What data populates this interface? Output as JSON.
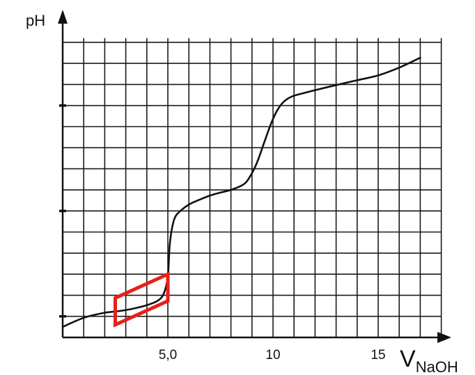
{
  "chart_data": {
    "type": "line",
    "xlabel": "V",
    "xlabel_sub": "NaOH",
    "ylabel": "pH",
    "xlim": [
      0,
      18
    ],
    "ylim": [
      0,
      14
    ],
    "x_tick_labels": [
      {
        "x": 5,
        "label": "5,0"
      },
      {
        "x": 10,
        "label": "10"
      },
      {
        "x": 15,
        "label": "15"
      }
    ],
    "y_major_ticks": [
      1,
      6,
      11
    ],
    "grid": true,
    "series": [
      {
        "name": "",
        "color": "#111111",
        "x": [
          0,
          0.5,
          1,
          1.5,
          2,
          2.5,
          3,
          3.5,
          4,
          4.5,
          4.8,
          5.0,
          5.1,
          5.3,
          5.6,
          6,
          6.5,
          7,
          7.5,
          8,
          8.5,
          8.8,
          9.2,
          9.6,
          9.9,
          10.2,
          10.5,
          10.9,
          11.5,
          12,
          13,
          14,
          15,
          16,
          17
        ],
        "y": [
          0.5,
          0.73,
          0.93,
          1.07,
          1.17,
          1.23,
          1.3,
          1.4,
          1.53,
          1.73,
          2.07,
          2.9,
          4.5,
          5.6,
          6.0,
          6.3,
          6.53,
          6.73,
          6.87,
          7.0,
          7.2,
          7.47,
          8.2,
          9.3,
          10.13,
          10.77,
          11.17,
          11.43,
          11.6,
          11.73,
          11.97,
          12.2,
          12.43,
          12.8,
          13.27
        ]
      }
    ],
    "highlight": {
      "shape": "parallelogram",
      "color": "#e8201a",
      "points": [
        [
          2.5,
          1.87
        ],
        [
          5,
          3.0
        ],
        [
          5,
          1.73
        ],
        [
          2.5,
          0.6
        ]
      ]
    }
  }
}
